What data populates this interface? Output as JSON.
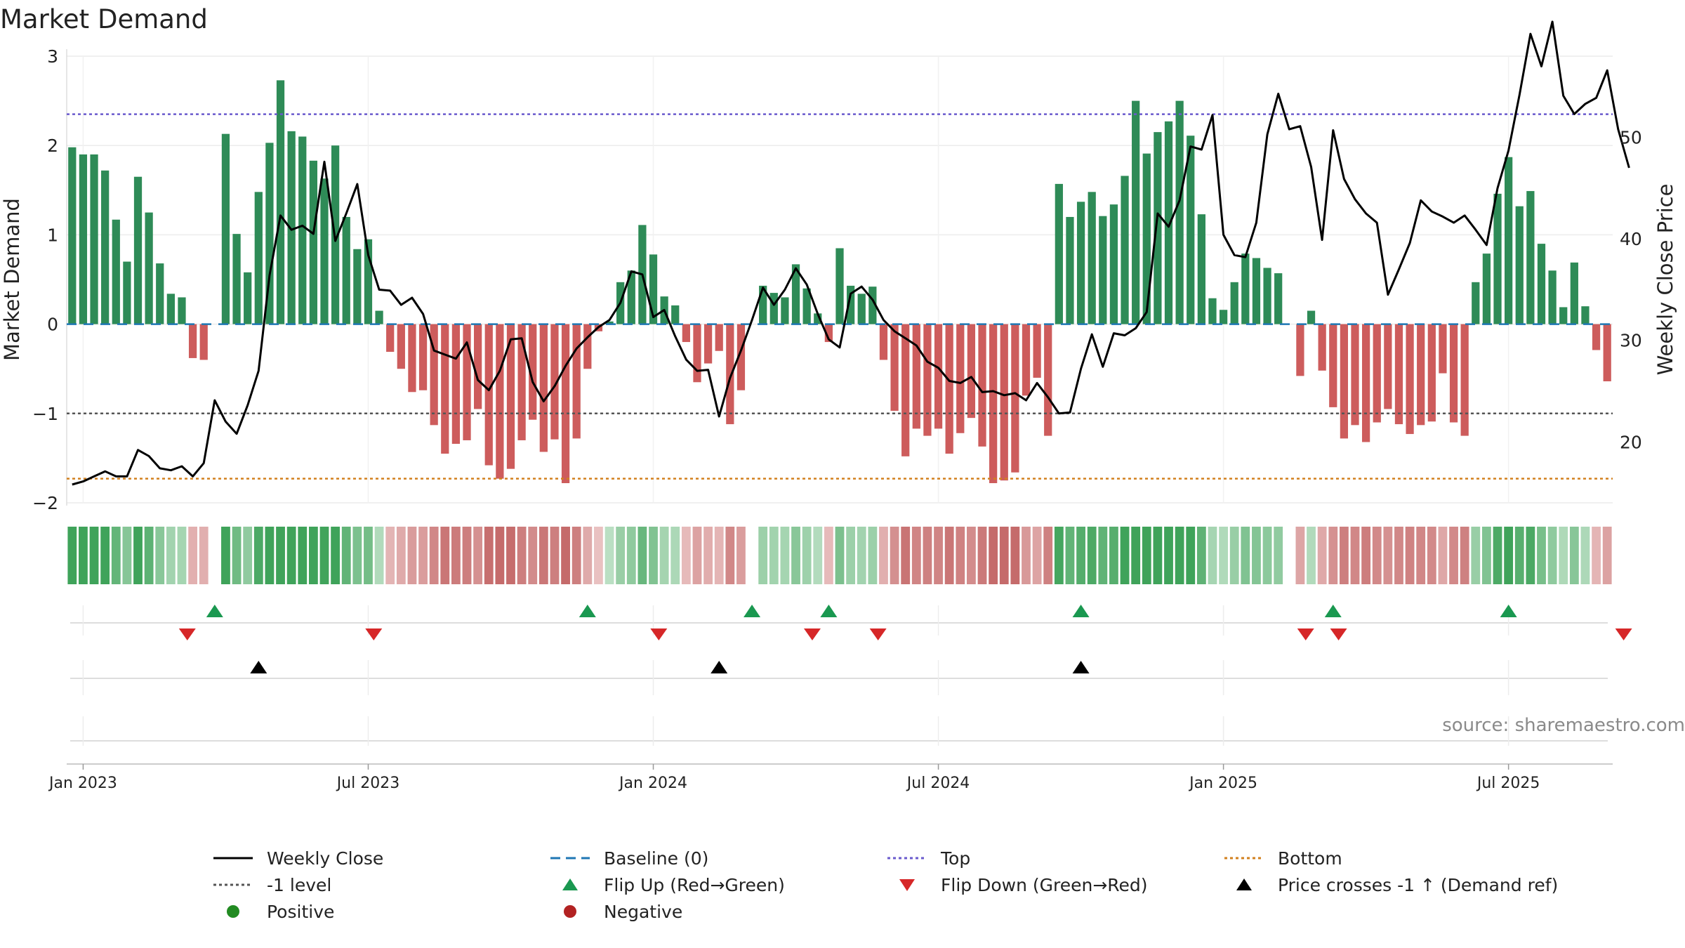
{
  "title": "Market Demand",
  "source": "source: sharemaestro.com",
  "colors": {
    "positive": "#2e8b57",
    "negative": "#cd5c5c",
    "price": "#000000",
    "baseline": "#1f77b4",
    "top": "#6a5acd",
    "minus1": "#555555",
    "bottom": "#d2801e",
    "flip_up": "#1a9850",
    "flip_down": "#d62728",
    "cross": "#000000",
    "positive_dot": "#228b22",
    "negative_dot": "#b22222"
  },
  "chart_data": {
    "type": "bar",
    "title": "Market Demand",
    "xlabel": "",
    "ylabel": "Market Demand",
    "y2label": "Weekly Close Price",
    "ylim": [
      -2,
      3
    ],
    "y2lim": [
      14,
      58
    ],
    "yticks": [
      -2,
      -1,
      0,
      1,
      2,
      3
    ],
    "y2ticks": [
      20,
      30,
      40,
      50
    ],
    "x_tick_labels": [
      "Jan 2023",
      "Jul 2023",
      "Jan 2024",
      "Jul 2024",
      "Jan 2025",
      "Jul 2025"
    ],
    "x_tick_weeks": [
      1.5,
      27.5,
      53.5,
      79.5,
      105.5,
      131.5
    ],
    "reference_lines": {
      "baseline": 0,
      "top": 2.35,
      "minus1": -1,
      "bottom": -1.73
    },
    "demand": [
      1.98,
      1.9,
      1.9,
      1.72,
      1.17,
      0.7,
      1.65,
      1.25,
      0.68,
      0.34,
      0.3,
      -0.38,
      -0.4,
      0,
      2.13,
      1.01,
      0.58,
      1.48,
      2.03,
      2.73,
      2.16,
      2.1,
      1.83,
      1.63,
      2.0,
      1.2,
      0.84,
      0.95,
      0.15,
      -0.31,
      -0.5,
      -0.76,
      -0.74,
      -1.13,
      -1.45,
      -1.34,
      -1.3,
      -0.95,
      -1.58,
      -1.73,
      -1.62,
      -1.3,
      -1.07,
      -1.43,
      -1.29,
      -1.78,
      -1.28,
      -0.5,
      -0.08,
      0.03,
      0.47,
      0.6,
      1.11,
      0.78,
      0.31,
      0.21,
      -0.2,
      -0.65,
      -0.44,
      -0.3,
      -1.12,
      -0.74,
      0,
      0.43,
      0.35,
      0.3,
      0.67,
      0.4,
      0.12,
      -0.2,
      0.85,
      0.43,
      0.34,
      0.42,
      -0.4,
      -0.97,
      -1.48,
      -1.17,
      -1.25,
      -1.17,
      -1.45,
      -1.22,
      -1.05,
      -1.37,
      -1.78,
      -1.75,
      -1.66,
      -0.8,
      -0.6,
      -1.25,
      1.57,
      1.2,
      1.37,
      1.48,
      1.21,
      1.34,
      1.66,
      2.5,
      1.91,
      2.15,
      2.27,
      2.5,
      2.11,
      1.23,
      0.29,
      0.16,
      0.47,
      0.79,
      0.74,
      0.63,
      0.57,
      0,
      -0.58,
      0.15,
      -0.52,
      -0.93,
      -1.28,
      -1.13,
      -1.32,
      -1.1,
      -0.95,
      -1.12,
      -1.23,
      -1.13,
      -1.09,
      -0.55,
      -1.1,
      -1.25,
      0.47,
      0.79,
      1.46,
      1.87,
      1.32,
      1.49,
      0.9,
      0.6,
      0.19,
      0.69,
      0.2,
      -0.29,
      -0.64
    ],
    "close": [
      15.8,
      16.1,
      16.6,
      17.1,
      16.6,
      16.6,
      19.2,
      18.6,
      17.4,
      17.2,
      17.6,
      16.6,
      17.9,
      24.1,
      22.0,
      20.8,
      23.6,
      27.0,
      36.4,
      42.3,
      40.9,
      41.3,
      40.5,
      47.6,
      39.8,
      42.5,
      45.4,
      38.4,
      35.0,
      34.9,
      33.5,
      34.2,
      32.6,
      29.0,
      28.6,
      28.2,
      29.8,
      26.1,
      25.1,
      27.0,
      30.1,
      30.2,
      25.9,
      24.0,
      25.5,
      27.5,
      29.2,
      30.3,
      31.3,
      32.0,
      33.7,
      36.8,
      36.5,
      32.3,
      33.0,
      30.4,
      28.1,
      27.0,
      27.1,
      22.5,
      26.3,
      29.0,
      32.0,
      35.2,
      33.5,
      35.0,
      37.1,
      35.5,
      32.6,
      30.1,
      29.3,
      34.6,
      35.3,
      34.0,
      32.0,
      30.9,
      30.2,
      29.5,
      27.9,
      27.3,
      26.0,
      25.8,
      26.4,
      24.9,
      25.0,
      24.6,
      24.8,
      24.1,
      25.8,
      24.4,
      22.8,
      22.9,
      27.2,
      30.6,
      27.4,
      30.7,
      30.5,
      31.2,
      32.8,
      42.5,
      41.2,
      43.8,
      49.1,
      48.8,
      52.2,
      40.4,
      38.4,
      38.2,
      41.6,
      50.3,
      54.3,
      50.8,
      51.1,
      47.1,
      39.9,
      50.7,
      45.9,
      43.9,
      42.5,
      41.6,
      34.5,
      37.0,
      39.6,
      43.8,
      42.7,
      42.2,
      41.6,
      42.3,
      40.9,
      39.4,
      45.0,
      48.7,
      54.2,
      60.2,
      57.0,
      61.4,
      54.1,
      52.3,
      53.3,
      53.9,
      56.6,
      50.8,
      47.0
    ],
    "flip_up_weeks": [
      13.5,
      47.5,
      62.5,
      69.5,
      92.5,
      115.5,
      131.5
    ],
    "flip_down_weeks": [
      11,
      28,
      54,
      68,
      74,
      113,
      116,
      142
    ],
    "cross_up_weeks": [
      17.5,
      59.5,
      92.5
    ]
  },
  "legend": [
    {
      "label": "Weekly Close",
      "symbol": "line"
    },
    {
      "label": "Baseline (0)",
      "symbol": "dashed"
    },
    {
      "label": "Top",
      "symbol": "dotted-top"
    },
    {
      "label": "Bottom",
      "symbol": "dotted-bottom"
    },
    {
      "label": "-1 level",
      "symbol": "dotted-minus1"
    },
    {
      "label": "Flip Up (Red→Green)",
      "symbol": "tri-up-green"
    },
    {
      "label": "Flip Down (Green→Red)",
      "symbol": "tri-down-red"
    },
    {
      "label": "Price crosses -1 ↑ (Demand ref)",
      "symbol": "tri-up-black"
    },
    {
      "label": "Positive",
      "symbol": "dot-green"
    },
    {
      "label": "Negative",
      "symbol": "dot-red"
    }
  ]
}
